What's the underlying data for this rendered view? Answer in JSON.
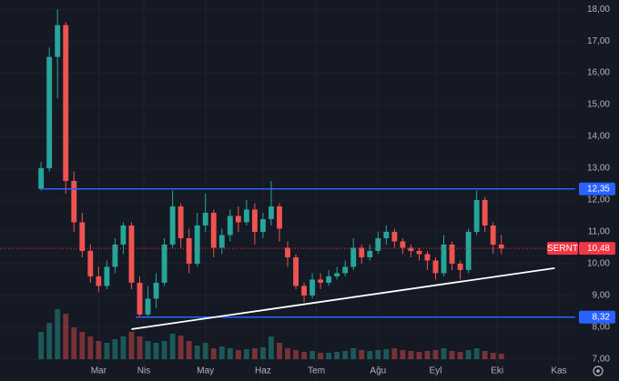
{
  "chart_data": {
    "type": "candlestick",
    "symbol": "SERNT",
    "up_color": "#26a69a",
    "down_color": "#ef5350",
    "xlim": [
      0,
      140
    ],
    "ylim": [
      6.31,
      18.29
    ],
    "xticks": [
      {
        "value": 24,
        "label": "Mar"
      },
      {
        "value": 35,
        "label": "Nis"
      },
      {
        "value": 50,
        "label": "May"
      },
      {
        "value": 64,
        "label": "Haz"
      },
      {
        "value": 77,
        "label": "Tem"
      },
      {
        "value": 92,
        "label": "Ağu"
      },
      {
        "value": 106,
        "label": "Eyl"
      },
      {
        "value": 121,
        "label": "Eki"
      },
      {
        "value": 136,
        "label": "Kas"
      }
    ],
    "yticks": [
      {
        "value": 7,
        "label": "7,00"
      },
      {
        "value": 8,
        "label": "8,00"
      },
      {
        "value": 9,
        "label": "9,00"
      },
      {
        "value": 10,
        "label": "10,00"
      },
      {
        "value": 11,
        "label": "11,00"
      },
      {
        "value": 12,
        "label": "12,00"
      },
      {
        "value": 13,
        "label": "13,00"
      },
      {
        "value": 14,
        "label": "14,00"
      },
      {
        "value": 15,
        "label": "15,00"
      },
      {
        "value": 16,
        "label": "16,00"
      },
      {
        "value": 17,
        "label": "17,00"
      },
      {
        "value": 18,
        "label": "18,00"
      }
    ],
    "grid": true,
    "x": [
      10,
      12,
      14,
      16,
      18,
      20,
      22,
      24,
      26,
      28,
      30,
      32,
      34,
      36,
      38,
      40,
      42,
      44,
      46,
      48,
      50,
      52,
      54,
      56,
      58,
      60,
      62,
      64,
      66,
      68,
      70,
      72,
      74,
      76,
      78,
      80,
      82,
      84,
      86,
      88,
      90,
      92,
      94,
      96,
      98,
      100,
      102,
      104,
      106,
      108,
      110,
      112,
      114,
      116,
      118,
      120,
      122
    ],
    "open": [
      12.35,
      13.0,
      16.5,
      17.5,
      12.6,
      11.3,
      10.4,
      9.6,
      9.3,
      9.9,
      10.6,
      11.2,
      9.4,
      8.4,
      8.9,
      9.4,
      10.6,
      11.8,
      10.8,
      10.0,
      11.2,
      11.6,
      10.5,
      10.9,
      11.5,
      11.3,
      11.7,
      11.0,
      11.4,
      11.8,
      10.5,
      10.2,
      9.3,
      9.0,
      9.5,
      9.4,
      9.6,
      9.7,
      9.9,
      10.5,
      10.2,
      10.4,
      10.8,
      11.0,
      10.7,
      10.5,
      10.4,
      10.3,
      10.1,
      9.7,
      10.6,
      10.0,
      9.8,
      11.0,
      12.0,
      11.2,
      10.6
    ],
    "high": [
      13.2,
      16.8,
      18.0,
      17.6,
      12.9,
      11.6,
      10.6,
      9.9,
      10.1,
      10.8,
      11.3,
      11.3,
      9.6,
      9.3,
      9.7,
      10.8,
      12.3,
      11.9,
      11.1,
      11.6,
      12.2,
      11.7,
      11.1,
      11.7,
      11.8,
      12.0,
      11.9,
      11.6,
      12.6,
      11.9,
      10.7,
      10.3,
      9.4,
      9.7,
      9.7,
      9.8,
      9.9,
      10.1,
      10.8,
      10.6,
      10.6,
      11.0,
      11.2,
      11.1,
      10.8,
      10.6,
      10.5,
      10.4,
      10.2,
      10.9,
      10.7,
      10.1,
      11.1,
      12.3,
      12.1,
      11.3,
      10.9
    ],
    "low": [
      12.3,
      12.9,
      15.2,
      12.2,
      11.0,
      10.2,
      9.4,
      9.1,
      9.2,
      9.7,
      10.3,
      9.2,
      8.3,
      8.3,
      8.6,
      9.3,
      10.5,
      10.5,
      9.7,
      9.9,
      11.0,
      10.2,
      10.3,
      10.7,
      11.0,
      11.2,
      10.6,
      10.8,
      11.2,
      10.7,
      9.9,
      9.2,
      8.8,
      8.9,
      9.2,
      9.3,
      9.5,
      9.6,
      9.8,
      10.0,
      10.1,
      10.3,
      10.6,
      10.5,
      10.3,
      10.2,
      10.1,
      9.8,
      9.5,
      9.6,
      9.8,
      9.5,
      9.7,
      10.9,
      11.0,
      10.3,
      10.3
    ],
    "close": [
      13.0,
      16.5,
      17.5,
      12.6,
      11.3,
      10.4,
      9.6,
      9.3,
      9.9,
      10.6,
      11.2,
      9.4,
      8.4,
      8.9,
      9.4,
      10.6,
      11.8,
      10.8,
      10.0,
      11.2,
      11.6,
      10.5,
      10.9,
      11.5,
      11.3,
      11.7,
      11.0,
      11.4,
      11.8,
      11.1,
      10.2,
      9.3,
      9.0,
      9.5,
      9.4,
      9.6,
      9.7,
      9.9,
      10.5,
      10.2,
      10.4,
      10.8,
      11.0,
      10.7,
      10.5,
      10.4,
      10.3,
      10.1,
      9.7,
      10.6,
      10.0,
      9.8,
      11.0,
      12.0,
      11.2,
      10.6,
      10.48
    ],
    "volume": [
      30,
      40,
      55,
      50,
      35,
      30,
      25,
      20,
      18,
      22,
      25,
      30,
      25,
      20,
      18,
      20,
      28,
      26,
      20,
      15,
      18,
      12,
      14,
      12,
      10,
      11,
      12,
      13,
      25,
      18,
      12,
      10,
      8,
      9,
      7,
      7,
      8,
      9,
      12,
      10,
      9,
      10,
      11,
      12,
      10,
      9,
      8,
      9,
      10,
      12,
      9,
      8,
      10,
      12,
      9,
      7,
      6
    ],
    "levels": [
      {
        "value": 12.35,
        "label": "12,35",
        "x_start": 10,
        "color": "#2962ff"
      },
      {
        "value": 8.32,
        "label": "8,32",
        "x_start": 33,
        "color": "#2962ff"
      }
    ],
    "trendline": {
      "x": [
        32,
        135
      ],
      "y": [
        7.94,
        9.86
      ],
      "color": "#ffffff"
    },
    "last_price": {
      "value": 10.48,
      "label": "10,48",
      "color": "#f23645"
    }
  }
}
